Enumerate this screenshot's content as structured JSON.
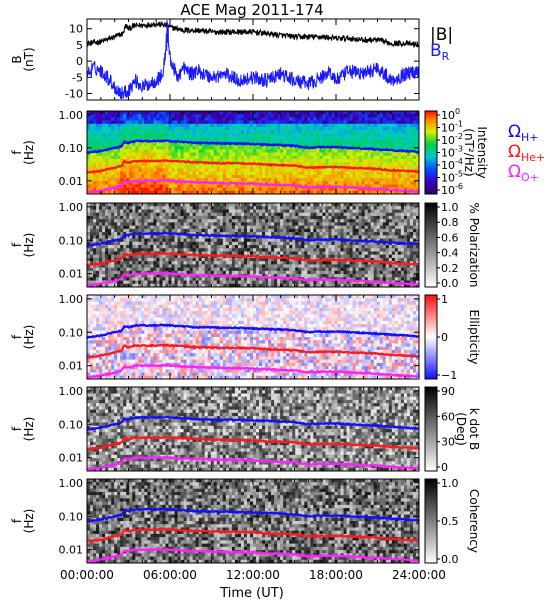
{
  "chart_data": {
    "type": "spectrogram",
    "title": "ACE Mag 2011-174",
    "xlabel": "Time (UT)",
    "x_ticks": [
      "00:00:00",
      "06:00:00",
      "12:00:00",
      "18:00:00",
      "24:00:00"
    ],
    "xlim_hours": [
      0,
      24
    ],
    "colors": {
      "btotal": "#000000",
      "br": "#1a1aff",
      "h_gyro": "#1010ff",
      "he_gyro": "#ff1a1a",
      "o_gyro": "#ff22ff"
    },
    "panels": [
      {
        "kind": "timeseries",
        "ylabel": [
          "B",
          "(nT)"
        ],
        "ylim": [
          -12,
          13
        ],
        "y_ticks": [
          {
            "v": 10,
            "label": "10"
          },
          {
            "v": 5,
            "label": "5"
          },
          {
            "v": 0,
            "label": "0"
          },
          {
            "v": -5,
            "label": "-5"
          },
          {
            "v": -10,
            "label": "-10"
          }
        ],
        "legend": [
          {
            "label": "|B|",
            "color_key": "btotal"
          },
          {
            "label": "B",
            "sub": "R",
            "color_key": "br"
          }
        ],
        "series": [
          {
            "name": "|B|",
            "color_key": "btotal",
            "t": [
              0,
              1,
              2,
              2.6,
              2.8,
              3,
              3.5,
              4,
              5,
              5.8,
              6,
              7,
              8,
              9,
              10,
              11,
              12,
              13,
              14,
              15,
              16,
              17,
              18,
              19,
              20,
              21,
              22,
              23,
              24
            ],
            "v": [
              5.5,
              6,
              7.5,
              8.5,
              11,
              10,
              11,
              11,
              11.5,
              11,
              10.5,
              9.5,
              9.5,
              9,
              9,
              9,
              9,
              8.5,
              8,
              7.5,
              7.5,
              7.5,
              7,
              7,
              6.5,
              6.5,
              5.5,
              5.5,
              5
            ]
          },
          {
            "name": "B_R",
            "color_key": "br",
            "t": [
              0,
              0.5,
              1,
              1.5,
              2,
              2.5,
              3,
              3.5,
              4,
              4.5,
              5,
              5.5,
              5.8,
              6,
              6.5,
              7,
              7.5,
              8,
              9,
              10,
              11,
              12,
              13,
              14,
              15,
              16,
              17,
              17.5,
              18,
              19,
              20,
              21,
              22,
              23,
              24
            ],
            "v": [
              -4,
              -2,
              -3,
              -5,
              -8,
              -10,
              -9,
              -6,
              -8,
              -7,
              -6,
              -4,
              8,
              1,
              -5,
              -2,
              -4,
              -3,
              -5,
              -4,
              -6,
              -5,
              -6,
              -4,
              -6,
              -7,
              -5,
              -3,
              -6,
              -3,
              -4,
              -2,
              -6,
              -4,
              -3
            ]
          }
        ]
      },
      {
        "kind": "spectrogram",
        "ylabel": [
          "f",
          "(Hz)"
        ],
        "cbar": "rainbow",
        "cbar_label": [
          "Intensity",
          "(nT²/Hz)"
        ],
        "cbar_ticks": [
          {
            "label": "10",
            "exp": "0"
          },
          {
            "label": "10",
            "exp": "-1"
          },
          {
            "label": "10",
            "exp": "-2"
          },
          {
            "label": "10",
            "exp": "-3"
          },
          {
            "label": "10",
            "exp": "-4"
          },
          {
            "label": "10",
            "exp": "-5"
          },
          {
            "label": "10",
            "exp": "-6"
          }
        ],
        "gyro_legend": [
          {
            "label": "Ω",
            "sub": "H+",
            "color_key": "h_gyro"
          },
          {
            "label": "Ω",
            "sub": "He+",
            "color_key": "he_gyro"
          },
          {
            "label": "Ω",
            "sub": "O+",
            "color_key": "o_gyro"
          }
        ]
      },
      {
        "kind": "spectrogram",
        "ylabel": [
          "f",
          "(Hz)"
        ],
        "cbar": "grey",
        "cbar_label": [
          "% Polarization"
        ],
        "cbar_ticks": [
          {
            "label": "1.0"
          },
          {
            "label": "0.8"
          },
          {
            "label": "0.6"
          },
          {
            "label": "0.4"
          },
          {
            "label": "0.2"
          },
          {
            "label": "0.0"
          }
        ]
      },
      {
        "kind": "spectrogram",
        "ylabel": [
          "f",
          "(Hz)"
        ],
        "cbar": "bwr",
        "cbar_label": [
          "Ellipticity"
        ],
        "cbar_ticks": [
          {
            "label": "1"
          },
          {
            "label": "0"
          },
          {
            "label": "−1"
          }
        ]
      },
      {
        "kind": "spectrogram",
        "ylabel": [
          "f",
          "(Hz)"
        ],
        "cbar": "grey",
        "cbar_label": [
          "k dot B",
          "(Deg)"
        ],
        "cbar_ticks": [
          {
            "label": "90"
          },
          {
            "label": "60"
          },
          {
            "label": "30"
          },
          {
            "label": "0"
          }
        ]
      },
      {
        "kind": "spectrogram",
        "ylabel": [
          "f",
          "(Hz)"
        ],
        "cbar": "grey",
        "cbar_label": [
          "Coherency"
        ],
        "cbar_ticks": [
          {
            "label": "1.0"
          },
          {
            "label": "0.5"
          },
          {
            "label": "0.0"
          }
        ]
      }
    ],
    "freq_axis": {
      "scale": "log",
      "ylim_hz": [
        0.004,
        1.3
      ],
      "ticks": [
        {
          "v": 1.0,
          "label": "1.00"
        },
        {
          "v": 0.1,
          "label": "0.10"
        },
        {
          "v": 0.01,
          "label": "0.01"
        }
      ]
    },
    "gyrofrequency_hz": {
      "t": [
        0,
        1,
        2,
        2.5,
        2.7,
        3,
        3.5,
        4,
        5,
        5.8,
        6,
        7,
        8,
        9,
        10,
        11,
        12,
        13,
        14,
        15,
        16,
        17,
        18,
        19,
        20,
        21,
        22,
        23,
        24
      ],
      "H+": [
        0.07,
        0.08,
        0.1,
        0.11,
        0.15,
        0.14,
        0.16,
        0.16,
        0.16,
        0.165,
        0.16,
        0.15,
        0.14,
        0.14,
        0.135,
        0.135,
        0.13,
        0.125,
        0.12,
        0.115,
        0.1,
        0.105,
        0.105,
        0.1,
        0.095,
        0.09,
        0.085,
        0.08,
        0.075
      ],
      "He+": [
        0.018,
        0.02,
        0.025,
        0.028,
        0.04,
        0.035,
        0.04,
        0.04,
        0.04,
        0.041,
        0.04,
        0.038,
        0.036,
        0.035,
        0.034,
        0.034,
        0.033,
        0.031,
        0.03,
        0.029,
        0.025,
        0.026,
        0.026,
        0.025,
        0.024,
        0.023,
        0.021,
        0.02,
        0.019
      ],
      "O+": [
        0.0045,
        0.005,
        0.0062,
        0.007,
        0.0095,
        0.0088,
        0.01,
        0.01,
        0.01,
        0.0103,
        0.01,
        0.0094,
        0.009,
        0.0088,
        0.0085,
        0.0085,
        0.0082,
        0.0078,
        0.0075,
        0.0072,
        0.0063,
        0.0066,
        0.0066,
        0.0063,
        0.006,
        0.0057,
        0.0053,
        0.005,
        0.0047
      ]
    }
  }
}
